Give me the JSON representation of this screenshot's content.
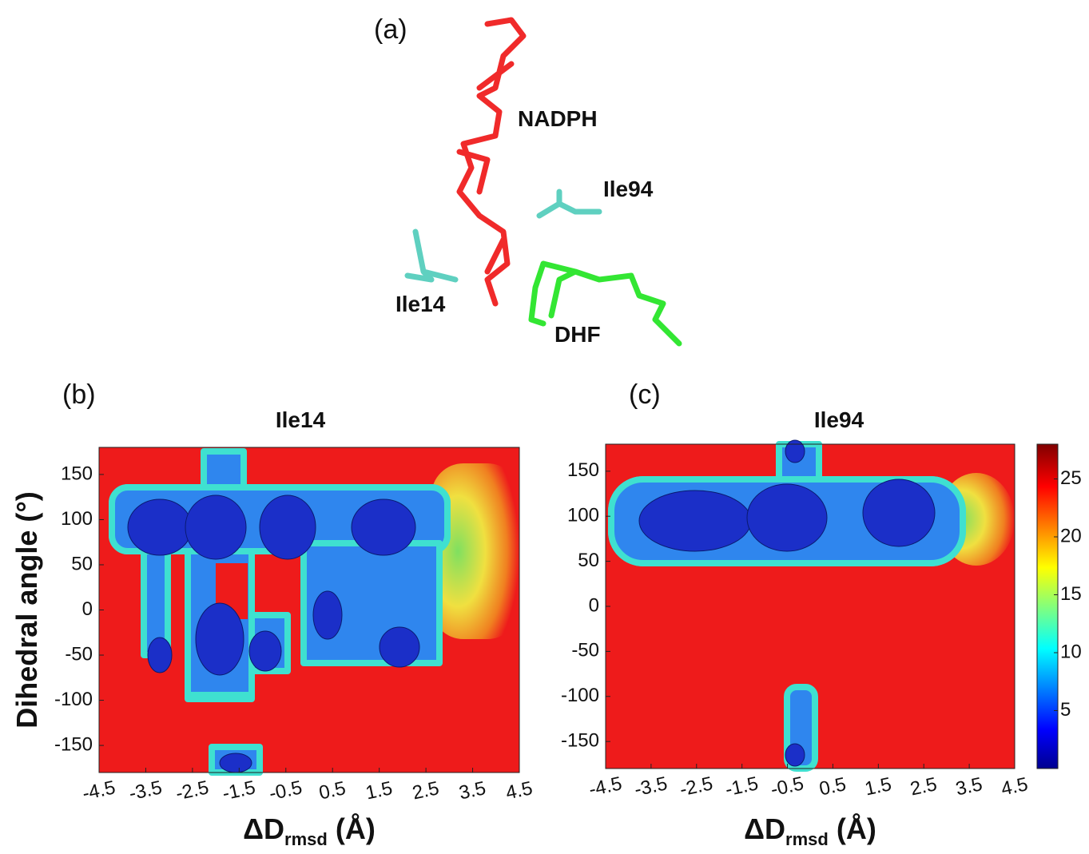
{
  "panel_a": {
    "label": "(a)",
    "molecules": [
      "NADPH",
      "Ile94",
      "Ile14",
      "DHF"
    ]
  },
  "chart_data": [
    {
      "type": "contour",
      "panel_label": "(b)",
      "title": "Ile14",
      "x_label": {
        "main": "ΔD",
        "sub": "rmsd",
        "unit": "(Å)"
      },
      "y_label": "Dihedral angle (°)",
      "xlim": [
        -4.5,
        4.5
      ],
      "xticks": [
        -4.5,
        -3.5,
        -2.5,
        -1.5,
        -0.5,
        0.5,
        1.5,
        2.5,
        3.5,
        4.5
      ],
      "ylim": [
        -180,
        180
      ],
      "yticks": [
        -150,
        -100,
        -50,
        0,
        50,
        100,
        150
      ]
    },
    {
      "type": "contour",
      "panel_label": "(c)",
      "title": "Ile94",
      "x_label": {
        "main": "ΔD",
        "sub": "rmsd",
        "unit": "(Å)"
      },
      "xlim": [
        -4.5,
        4.5
      ],
      "xticks": [
        -4.5,
        -3.5,
        -2.5,
        -1.5,
        -0.5,
        0.5,
        1.5,
        2.5,
        3.5,
        4.5
      ],
      "ylim": [
        -180,
        180
      ],
      "yticks": [
        -150,
        -100,
        -50,
        0,
        50,
        100,
        150
      ],
      "colorbar": {
        "lim": [
          0,
          28
        ],
        "ticks": [
          5,
          10,
          15,
          20,
          25
        ]
      }
    }
  ]
}
